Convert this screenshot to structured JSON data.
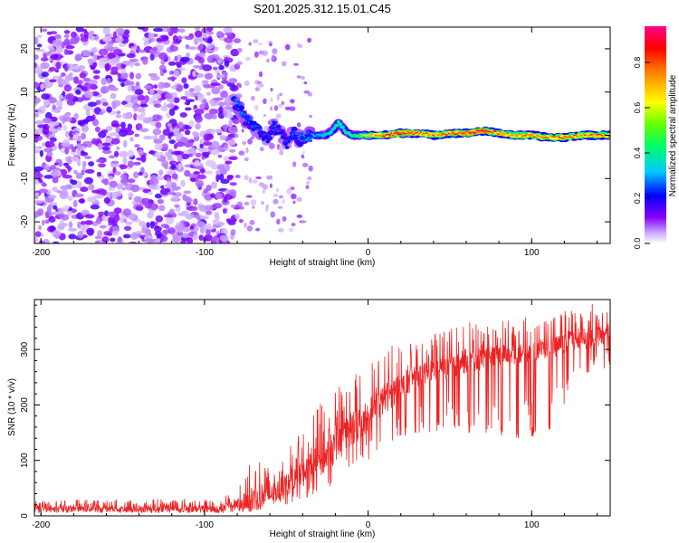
{
  "figure": {
    "title": "S201.2025.312.15.01.C45"
  },
  "chart_data": [
    {
      "type": "heatmap",
      "xlabel": "Height of straight line (km)",
      "ylabel": "Frequency (Hz)",
      "xlim": [
        -204,
        148
      ],
      "ylim": [
        -25,
        25
      ],
      "xticks": [
        -200,
        -100,
        0,
        100
      ],
      "yticks": [
        -20,
        -10,
        0,
        10,
        20
      ],
      "colorbar": {
        "label": "Normalized spectral amplitude",
        "range": [
          0,
          0.96
        ],
        "ticks": [
          0,
          0.2,
          0.4,
          0.6,
          0.8
        ],
        "tick_labels": [
          "0.0",
          "0.2",
          "0.4",
          "0.6",
          "0.8"
        ],
        "colors": [
          "#ffffff",
          "#8800ff",
          "#0000ff",
          "#00ffff",
          "#00ff00",
          "#ffff00",
          "#ff8800",
          "#ff0000",
          "#ff0088"
        ]
      },
      "noise_region_km": [
        -204,
        -80
      ],
      "transition_region_km": [
        -80,
        -35
      ],
      "ridge": {
        "x": [
          -82,
          -78,
          -74,
          -70,
          -66,
          -62,
          -58,
          -54,
          -50,
          -46,
          -42,
          -38,
          -34,
          -30,
          -26,
          -22,
          -18,
          -14,
          -10,
          -6,
          -2,
          2,
          10,
          20,
          30,
          40,
          50,
          60,
          70,
          80,
          90,
          100,
          110,
          120,
          130,
          140,
          148
        ],
        "y": [
          8,
          6,
          3,
          2,
          1,
          -1,
          2,
          1,
          -2,
          1,
          -1,
          0,
          0,
          0,
          0,
          1,
          3,
          1,
          0,
          0,
          0,
          0,
          0,
          0.5,
          0.5,
          0,
          0.5,
          0.5,
          1,
          0.5,
          0,
          0,
          -0.5,
          -0.5,
          0,
          0,
          0
        ],
        "amplitude": [
          0.3,
          0.35,
          0.3,
          0.3,
          0.3,
          0.25,
          0.3,
          0.28,
          0.25,
          0.3,
          0.3,
          0.32,
          0.35,
          0.35,
          0.4,
          0.42,
          0.45,
          0.45,
          0.45,
          0.5,
          0.6,
          0.75,
          0.9,
          0.95,
          0.85,
          0.8,
          0.85,
          0.9,
          0.95,
          0.85,
          0.8,
          0.85,
          0.8,
          0.85,
          0.8,
          0.85,
          0.8
        ]
      }
    },
    {
      "type": "line",
      "xlabel": "Height of straight line (km)",
      "ylabel": "SNR (10 * v/v)",
      "xlim": [
        -204,
        148
      ],
      "ylim": [
        0,
        390
      ],
      "xticks": [
        -200,
        -100,
        0,
        100
      ],
      "yticks": [
        0,
        100,
        200,
        300
      ],
      "series": [
        {
          "name": "SNR",
          "color": "#ee2222",
          "envelope_x": [
            -204,
            -90,
            -75,
            -70,
            -60,
            -50,
            -40,
            -30,
            -20,
            -10,
            0,
            10,
            20,
            30,
            40,
            50,
            60,
            70,
            80,
            90,
            100,
            110,
            120,
            130,
            140,
            148
          ],
          "baseline": [
            10,
            10,
            15,
            20,
            30,
            45,
            65,
            85,
            110,
            140,
            170,
            200,
            225,
            245,
            255,
            260,
            270,
            275,
            280,
            285,
            290,
            295,
            300,
            310,
            315,
            320
          ],
          "peak": [
            28,
            32,
            65,
            120,
            90,
            130,
            150,
            200,
            225,
            260,
            280,
            300,
            320,
            320,
            330,
            340,
            350,
            350,
            355,
            355,
            360,
            365,
            370,
            375,
            385,
            385
          ],
          "dip": [
            5,
            5,
            5,
            10,
            15,
            20,
            30,
            40,
            60,
            80,
            100,
            120,
            140,
            150,
            150,
            150,
            150,
            140,
            140,
            140,
            140,
            150,
            200,
            250,
            260,
            270
          ]
        }
      ]
    }
  ]
}
